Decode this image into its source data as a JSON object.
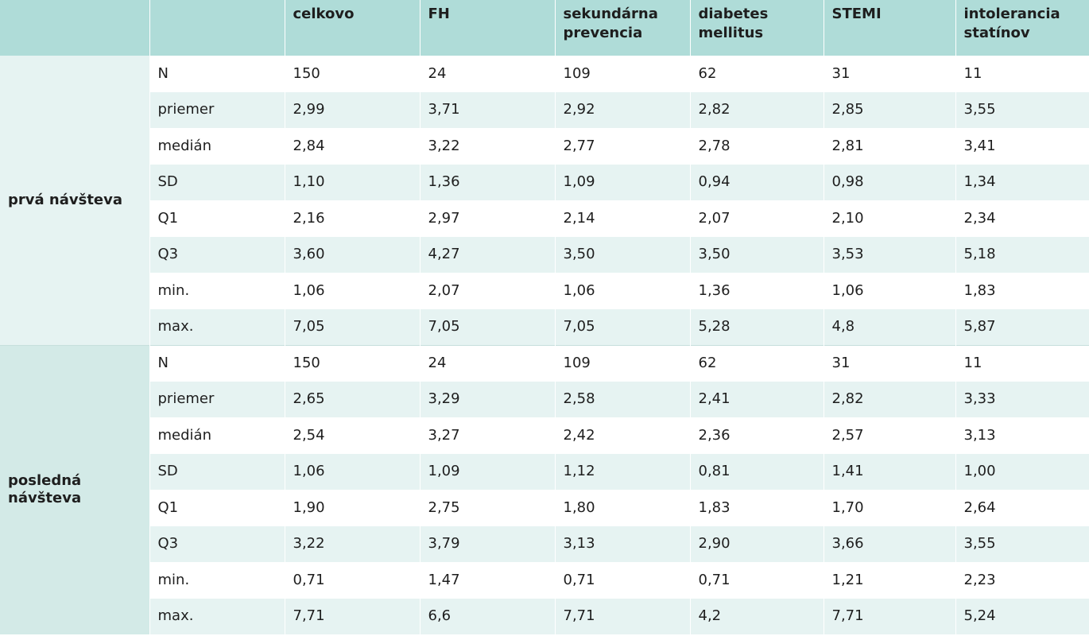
{
  "table": {
    "headers": [
      "",
      "celkovo",
      "FH",
      "sekundárna\nprevencia",
      "diabetes\nmellitus",
      "STEMI",
      "intolerancia\nstatínov"
    ],
    "groups": [
      {
        "label": "prvá návšteva",
        "rows": [
          {
            "stat": "N",
            "values": [
              "150",
              "24",
              "109",
              "62",
              "31",
              "11"
            ]
          },
          {
            "stat": "priemer",
            "values": [
              "2,99",
              "3,71",
              "2,92",
              "2,82",
              "2,85",
              "3,55"
            ]
          },
          {
            "stat": "medián",
            "values": [
              "2,84",
              "3,22",
              "2,77",
              "2,78",
              "2,81",
              "3,41"
            ]
          },
          {
            "stat": "SD",
            "values": [
              "1,10",
              "1,36",
              "1,09",
              "0,94",
              "0,98",
              "1,34"
            ]
          },
          {
            "stat": "Q1",
            "values": [
              "2,16",
              "2,97",
              "2,14",
              "2,07",
              "2,10",
              "2,34"
            ]
          },
          {
            "stat": "Q3",
            "values": [
              "3,60",
              "4,27",
              "3,50",
              "3,50",
              "3,53",
              "5,18"
            ]
          },
          {
            "stat": "min.",
            "values": [
              "1,06",
              "2,07",
              "1,06",
              "1,36",
              "1,06",
              "1,83"
            ]
          },
          {
            "stat": "max.",
            "values": [
              "7,05",
              "7,05",
              "7,05",
              "5,28",
              "4,8",
              "5,87"
            ]
          }
        ]
      },
      {
        "label": "posledná\nnávšteva",
        "rows": [
          {
            "stat": "N",
            "values": [
              "150",
              "24",
              "109",
              "62",
              "31",
              "11"
            ]
          },
          {
            "stat": "priemer",
            "values": [
              "2,65",
              "3,29",
              "2,58",
              "2,41",
              "2,82",
              "3,33"
            ]
          },
          {
            "stat": "medián",
            "values": [
              "2,54",
              "3,27",
              "2,42",
              "2,36",
              "2,57",
              "3,13"
            ]
          },
          {
            "stat": "SD",
            "values": [
              "1,06",
              "1,09",
              "1,12",
              "0,81",
              "1,41",
              "1,00"
            ]
          },
          {
            "stat": "Q1",
            "values": [
              "1,90",
              "2,75",
              "1,80",
              "1,83",
              "1,70",
              "2,64"
            ]
          },
          {
            "stat": "Q3",
            "values": [
              "3,22",
              "3,79",
              "3,13",
              "2,90",
              "3,66",
              "3,55"
            ]
          },
          {
            "stat": "min.",
            "values": [
              "0,71",
              "1,47",
              "0,71",
              "0,71",
              "1,21",
              "2,23"
            ]
          },
          {
            "stat": "max.",
            "values": [
              "7,71",
              "6,6",
              "7,71",
              "4,2",
              "7,71",
              "5,24"
            ]
          }
        ]
      }
    ]
  },
  "colors": {
    "header_bg": "#afdcd8",
    "stripe_bg": "#e6f3f2",
    "group1_bg": "#e6f3f2",
    "group2_bg": "#d3eae7"
  }
}
